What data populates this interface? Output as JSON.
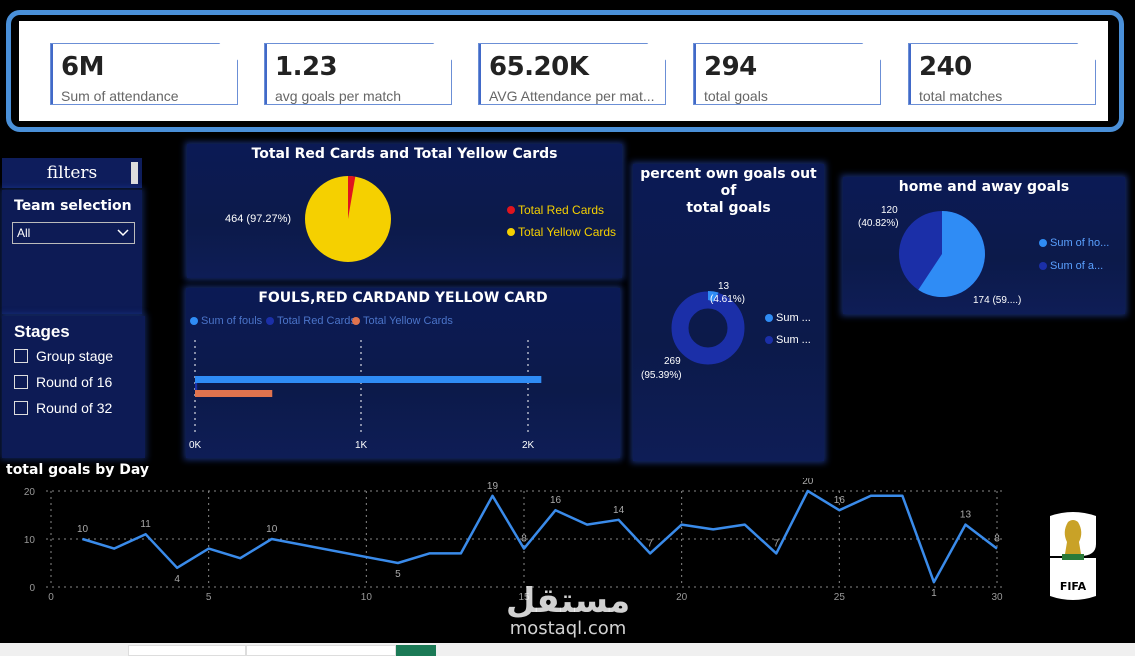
{
  "kpis": [
    {
      "value": "6M",
      "label": "Sum of attendance"
    },
    {
      "value": "1.23",
      "label": "avg goals per match"
    },
    {
      "value": "65.20K",
      "label": "AVG Attendance per mat..."
    },
    {
      "value": "294",
      "label": "total goals"
    },
    {
      "value": "240",
      "label": "total matches"
    }
  ],
  "filters": {
    "title": "filters",
    "team_label": "Team selection",
    "team_value": "All",
    "stages_title": "Stages",
    "stages": [
      "Group stage",
      "Round of 16",
      "Round of 32"
    ]
  },
  "cards_pie": {
    "title": "Total Red Cards and Total Yellow Cards",
    "slice_label": "464 (97.27%)",
    "legend": [
      "Total Red Cards",
      "Total Yellow Cards"
    ]
  },
  "fouls_bar": {
    "title": "FOULS,RED CARDAND YELLOW CARD",
    "legend": [
      "Sum of fouls",
      "Total Red Cards",
      "Total Yellow Cards"
    ],
    "ticks": [
      "0K",
      "1K",
      "2K"
    ]
  },
  "own_goals": {
    "title_line1": "percent own goals out of",
    "title_line2": "total goals",
    "label_small_1": "13",
    "label_small_2": "(4.61%)",
    "label_big_1": "269",
    "label_big_2": "(95.39%)",
    "legend": [
      "Sum ...",
      "Sum ..."
    ]
  },
  "home_away": {
    "title": "home and away goals",
    "label_a_1": "120",
    "label_a_2": "(40.82%)",
    "label_b": "174 (59....)",
    "legend": [
      "Sum of ho...",
      "Sum of a..."
    ]
  },
  "line_chart": {
    "title": "total goals by Day"
  },
  "colors": {
    "accent": "#4a90d9",
    "red": "#e0141e",
    "yellow": "#f5d000",
    "blue_light": "#2f8cf5",
    "blue_dark": "#1b2fa8",
    "orange": "#e0734e",
    "line": "#3a8bea"
  },
  "watermark": {
    "arabic": "مستقل",
    "latin": "mostaql.com"
  },
  "logo": {
    "text": "FIFA"
  },
  "chart_data": [
    {
      "type": "pie",
      "title": "Total Red Cards and Total Yellow Cards",
      "categories": [
        "Total Red Cards",
        "Total Yellow Cards"
      ],
      "values": [
        13,
        464
      ],
      "labels": [
        "",
        "464 (97.27%)"
      ]
    },
    {
      "type": "bar",
      "title": "FOULS,RED CARDAND YELLOW CARD",
      "series": [
        {
          "name": "Sum of fouls",
          "values": [
            2080
          ]
        },
        {
          "name": "Total Red Cards",
          "values": [
            13
          ]
        },
        {
          "name": "Total Yellow Cards",
          "values": [
            464
          ]
        }
      ],
      "xlim": [
        0,
        2000
      ],
      "xticks": [
        "0K",
        "1K",
        "2K"
      ]
    },
    {
      "type": "pie",
      "title": "percent own goals out of total goals",
      "values": [
        13,
        269
      ],
      "labels": [
        "13 (4.61%)",
        "269 (95.39%)"
      ]
    },
    {
      "type": "pie",
      "title": "home and away goals",
      "values": [
        120,
        174
      ],
      "labels": [
        "120 (40.82%)",
        "174 (59....)"
      ]
    },
    {
      "type": "line",
      "title": "total goals by Day",
      "x": [
        1,
        2,
        3,
        4,
        5,
        6,
        7,
        11,
        12,
        13,
        14,
        15,
        16,
        17,
        18,
        19,
        20,
        21,
        22,
        23,
        24,
        25,
        26,
        27,
        28,
        29,
        30
      ],
      "values": [
        10,
        8,
        11,
        4,
        8,
        6,
        10,
        5,
        7,
        7,
        19,
        8,
        16,
        13,
        14,
        7,
        13,
        12,
        13,
        7,
        20,
        16,
        19,
        19,
        1,
        13,
        8
      ],
      "point_labels": {
        "1": "10",
        "3": "11",
        "4": "4",
        "7": "10",
        "11": "5",
        "14": "19",
        "15": "8",
        "16": "16",
        "18": "14",
        "19": "7",
        "23": "7",
        "24": "20",
        "25": "16",
        "28": "1",
        "29": "13",
        "30": "8"
      },
      "xticks": [
        0,
        5,
        10,
        15,
        20,
        25,
        30
      ],
      "yticks": [
        0,
        10,
        20
      ],
      "ylim": [
        0,
        20
      ],
      "xlim": [
        0,
        30
      ]
    }
  ]
}
